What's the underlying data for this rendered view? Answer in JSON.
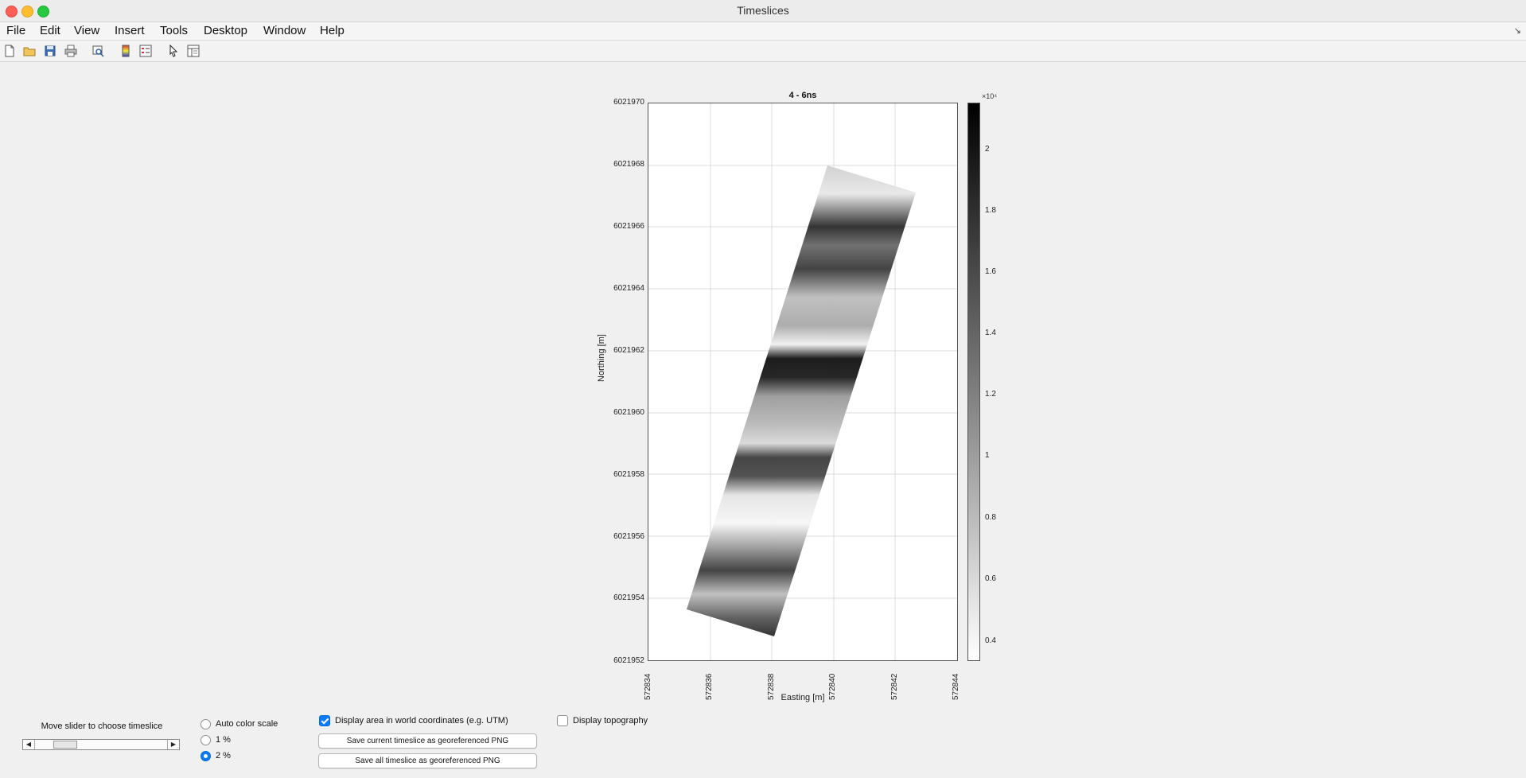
{
  "window": {
    "title": "Timeslices"
  },
  "menu": [
    "File",
    "Edit",
    "View",
    "Insert",
    "Tools",
    "Desktop",
    "Window",
    "Help"
  ],
  "toolbar": [
    "new-figure-icon",
    "open-file-icon",
    "save-icon",
    "print-icon",
    "print-preview-icon",
    "colorbar-icon",
    "legend-icon",
    "pointer-icon",
    "property-inspector-icon"
  ],
  "plot": {
    "title": "4 - 6ns",
    "xlabel": "Easting [m]",
    "ylabel": "Northing [m]",
    "xticks": [
      "572834",
      "572836",
      "572838",
      "572840",
      "572842",
      "572844"
    ],
    "yticks": [
      "6021970",
      "6021968",
      "6021966",
      "6021964",
      "6021962",
      "6021960",
      "6021958",
      "6021956",
      "6021954",
      "6021952"
    ],
    "xlim": [
      572834,
      572844
    ],
    "ylim": [
      6021952,
      6021970
    ]
  },
  "colorbar": {
    "exponent": "×10⁴",
    "ticks": [
      "2",
      "1.8",
      "1.6",
      "1.4",
      "1.2",
      "1",
      "0.8",
      "0.6",
      "0.4"
    ],
    "colormap": "gray-reversed"
  },
  "controls": {
    "slider_label": "Move slider to choose timeslice",
    "slider_value": 0.15,
    "radios": [
      {
        "label": "Auto color scale",
        "selected": false
      },
      {
        "label": "1 %",
        "selected": false
      },
      {
        "label": "2 %",
        "selected": true
      }
    ],
    "world_coords": {
      "label": "Display area in world coordinates (e.g. UTM)",
      "checked": true
    },
    "topography": {
      "label": "Display topography",
      "checked": false
    },
    "save_current": "Save current timeslice as georeferenced PNG",
    "save_all": "Save all timeslice as georeferenced PNG"
  },
  "colors": {
    "accent": "#0a7aff"
  }
}
